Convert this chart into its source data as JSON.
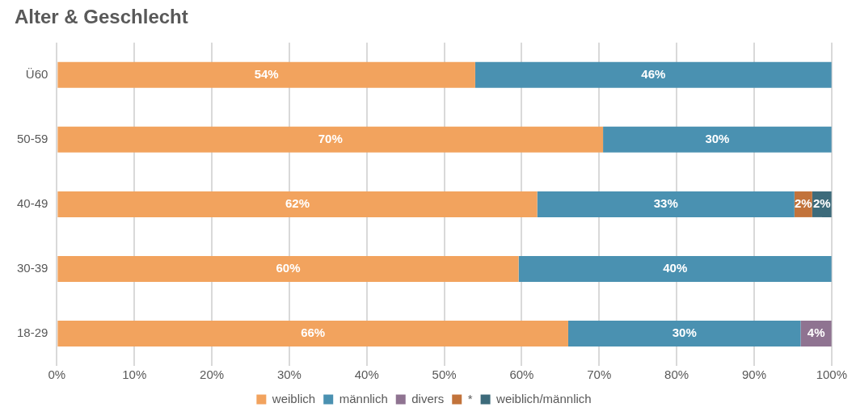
{
  "chart_data": {
    "type": "bar",
    "orientation": "horizontal",
    "stacked": true,
    "title": "Alter & Geschlecht",
    "categories": [
      "Ü60",
      "50-59",
      "40-49",
      "30-39",
      "18-29"
    ],
    "series": [
      {
        "name": "weiblich",
        "color": "#f2a35e",
        "values": [
          54,
          70.5,
          62,
          59.6,
          66
        ],
        "value_labels": [
          "54%",
          "70%",
          "62%",
          "60%",
          "66%"
        ]
      },
      {
        "name": "männlich",
        "color": "#4a91b1",
        "values": [
          46,
          29.5,
          33.2,
          40.4,
          30
        ],
        "value_labels": [
          "46%",
          "30%",
          "33%",
          "40%",
          "30%"
        ]
      },
      {
        "name": "divers",
        "color": "#8f7391",
        "values": [
          null,
          null,
          null,
          null,
          4
        ],
        "value_labels": [
          null,
          null,
          null,
          null,
          "4%"
        ]
      },
      {
        "name": "*",
        "color": "#c2733b",
        "values": [
          null,
          null,
          2.3,
          null,
          null
        ],
        "value_labels": [
          null,
          null,
          "2%",
          null,
          null
        ]
      },
      {
        "name": "weiblich/männlich",
        "color": "#3d6b7b",
        "values": [
          null,
          null,
          2.5,
          null,
          null
        ],
        "value_labels": [
          null,
          null,
          "2%",
          null,
          null
        ]
      }
    ],
    "xlim": [
      0,
      100
    ],
    "xticks": [
      {
        "value": 0,
        "label": "0%"
      },
      {
        "value": 10,
        "label": "10%"
      },
      {
        "value": 20,
        "label": "20%"
      },
      {
        "value": 30,
        "label": "30%"
      },
      {
        "value": 40,
        "label": "40%"
      },
      {
        "value": 50,
        "label": "50%"
      },
      {
        "value": 60,
        "label": "60%"
      },
      {
        "value": 70,
        "label": "70%"
      },
      {
        "value": 80,
        "label": "80%"
      },
      {
        "value": 90,
        "label": "90%"
      },
      {
        "value": 100,
        "label": "100%"
      }
    ],
    "grid": "x",
    "legend": "bottom"
  }
}
